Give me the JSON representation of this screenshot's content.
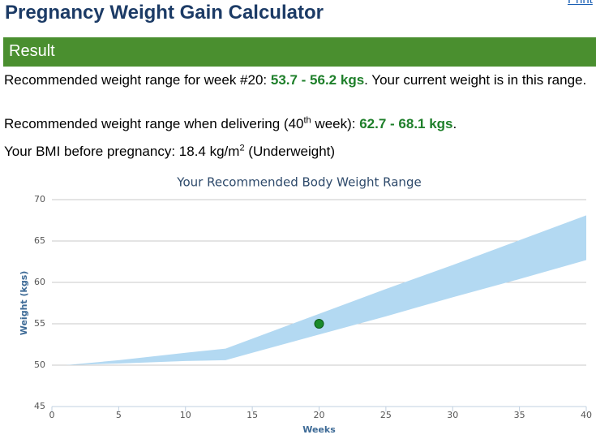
{
  "header": {
    "title": "Pregnancy Weight Gain Calculator",
    "print_link": "Print"
  },
  "result": {
    "heading": "Result",
    "week_line": {
      "before": "Recommended weight range for week #20: ",
      "range": "53.7 - 56.2 kgs",
      "after": ". Your current weight is in this range."
    },
    "delivery_line": {
      "before": "Recommended weight range when delivering (40",
      "sup": "th",
      "middle": " week): ",
      "range": "62.7 - 68.1 kgs",
      "after": "."
    },
    "bmi_line": {
      "before": "Your BMI before pregnancy: 18.4 kg/m",
      "sup": "2",
      "after": " (Underweight)"
    }
  },
  "chart_data": {
    "type": "area-range",
    "title": "Your Recommended Body Weight Range",
    "x_label": "Weeks",
    "y_label": "Weight (kgs)",
    "xlim": [
      0,
      40
    ],
    "xticks": [
      0,
      5,
      10,
      15,
      20,
      25,
      30,
      35,
      40
    ],
    "ylim": [
      45,
      70
    ],
    "yticks": [
      45,
      50,
      55,
      60,
      65,
      70
    ],
    "grid": true,
    "range": {
      "color": "#b3d9f2",
      "x": [
        1,
        5,
        10,
        13,
        15,
        20,
        25,
        30,
        35,
        40
      ],
      "low": [
        50,
        50.2,
        50.5,
        50.6,
        51.5,
        53.7,
        55.9,
        58.2,
        60.4,
        62.7
      ],
      "high": [
        50,
        50.6,
        51.5,
        52,
        53.2,
        56.2,
        59.2,
        62.1,
        65.1,
        68.1
      ]
    },
    "point": {
      "color": "#1a8a2a",
      "x": 20,
      "y": 55
    }
  }
}
